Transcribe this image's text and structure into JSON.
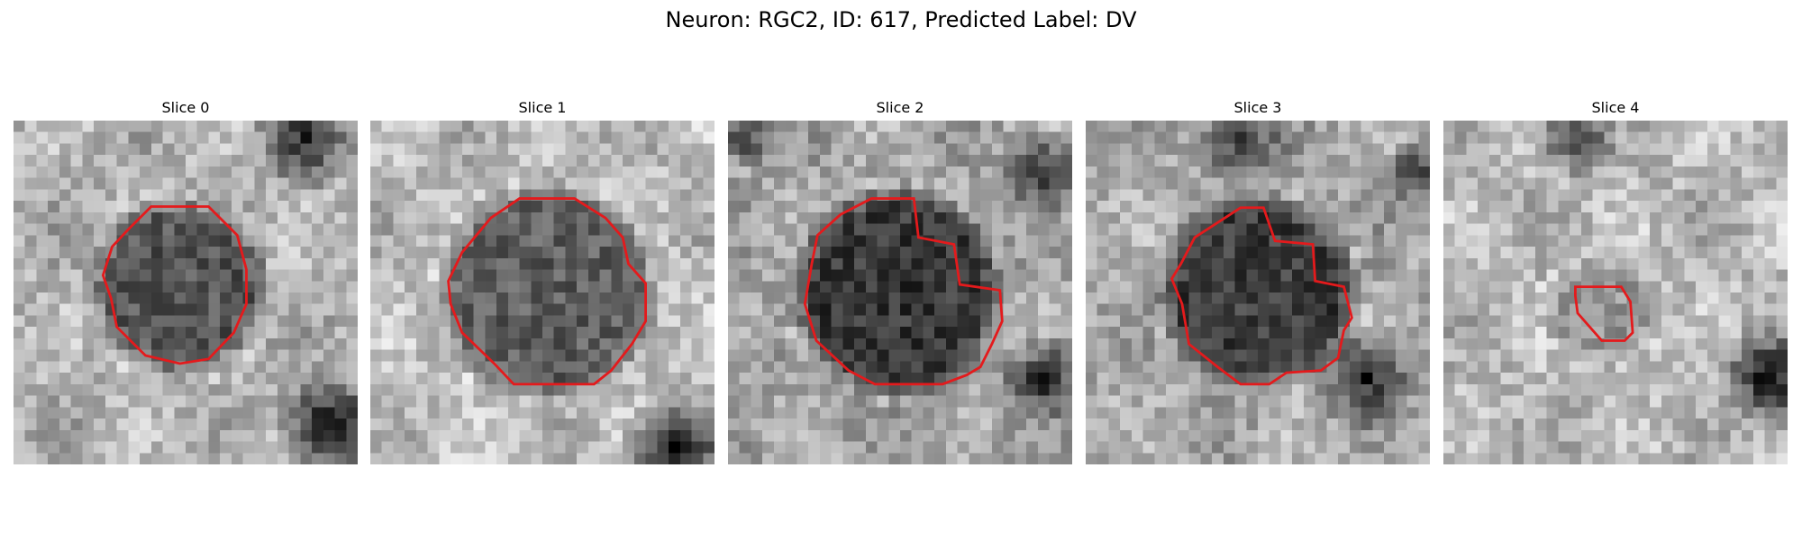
{
  "figure": {
    "title": "Neuron: RGC2, ID: 617, Predicted Label: DV"
  },
  "slices": [
    {
      "title": "Slice 0",
      "background": "#b2b2b2",
      "center_tone": 85,
      "outline_color": "#e41a1c",
      "outline_shape": "octagon"
    },
    {
      "title": "Slice 1",
      "background": "#bcbcbc",
      "center_tone": 95,
      "outline_color": "#e41a1c",
      "outline_shape": "octagon"
    },
    {
      "title": "Slice 2",
      "background": "#a6a6a6",
      "center_tone": 55,
      "outline_color": "#e41a1c",
      "outline_shape": "irregular"
    },
    {
      "title": "Slice 3",
      "background": "#a9a9a9",
      "center_tone": 60,
      "outline_color": "#e41a1c",
      "outline_shape": "irregular"
    },
    {
      "title": "Slice 4",
      "background": "#b9b9b9",
      "center_tone": 150,
      "outline_color": "#e41a1c",
      "outline_shape": "small"
    }
  ]
}
